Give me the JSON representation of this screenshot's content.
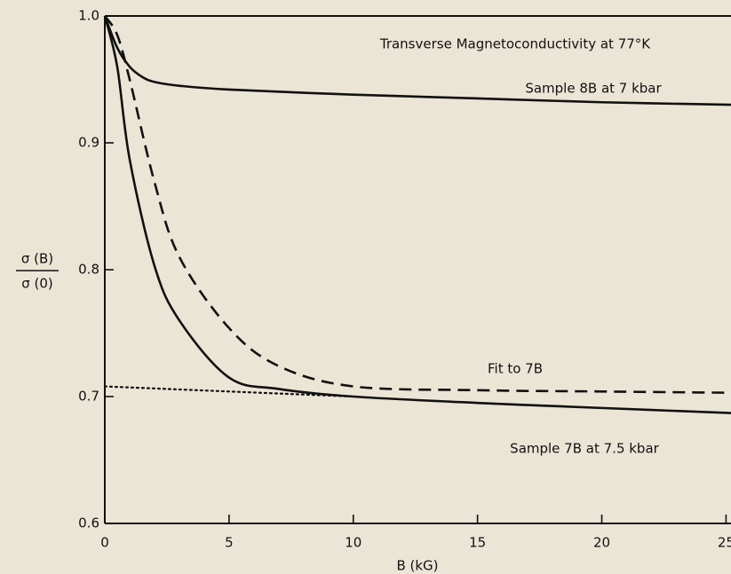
{
  "chart_data": {
    "type": "line",
    "title": "Transverse Magnetoconductivity at 77°K",
    "x_label": "B (kG)",
    "y_label": {
      "numerator": "σ (B)",
      "denominator": "σ (0)"
    },
    "xlim": [
      0,
      25.2
    ],
    "ylim": [
      0.6,
      1.0
    ],
    "xticks": [
      0,
      5,
      10,
      15,
      20,
      25
    ],
    "yticks": [
      0.6,
      0.7,
      0.8,
      0.9,
      {
        "value": 1.0,
        "label": "1.0"
      }
    ],
    "series": [
      {
        "name": "Sample 8B at 7 kbar",
        "color": "#111111",
        "style": "solid",
        "x": [
          0,
          0.5,
          1,
          1.5,
          2,
          3,
          5,
          10,
          15,
          20,
          25.2
        ],
        "values": [
          1.0,
          0.975,
          0.96,
          0.952,
          0.948,
          0.945,
          0.942,
          0.938,
          0.935,
          0.932,
          0.93
        ]
      },
      {
        "name": "Fit to 7B",
        "color": "#111111",
        "style": "dashed",
        "x": [
          0,
          0.5,
          1,
          2,
          3,
          5,
          7,
          10,
          15,
          20,
          25.2
        ],
        "values": [
          1.0,
          0.985,
          0.95,
          0.869,
          0.81,
          0.754,
          0.724,
          0.708,
          0.705,
          0.704,
          0.703
        ]
      },
      {
        "name": "Sample 7B at 7.5 kbar",
        "color": "#111111",
        "style": "solid",
        "x": [
          0,
          0.5,
          1,
          2,
          3,
          5,
          7,
          10,
          15,
          20,
          25.2
        ],
        "values": [
          1.0,
          0.96,
          0.887,
          0.803,
          0.76,
          0.715,
          0.706,
          0.7,
          0.695,
          0.691,
          0.687
        ]
      },
      {
        "color": "#111111",
        "style": "dotted",
        "x": [
          0,
          10
        ],
        "values": [
          0.708,
          0.7
        ]
      }
    ]
  }
}
